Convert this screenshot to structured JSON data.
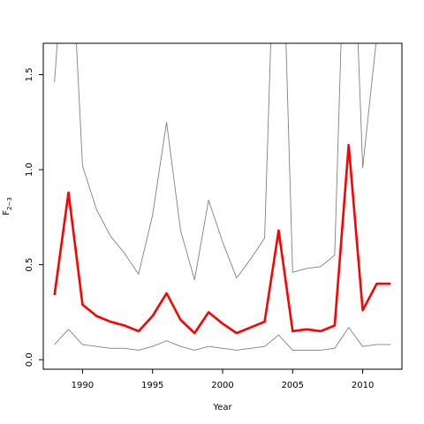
{
  "chart_data": {
    "type": "line",
    "title": "",
    "xlabel": "Year",
    "ylabel": "F",
    "ylabel_sub": "2−3",
    "xlim": [
      1987.2,
      2012.8
    ],
    "ylim": [
      -0.05,
      1.665
    ],
    "x_ticks": [
      1990,
      1995,
      2000,
      2005,
      2010
    ],
    "x_tick_labels": [
      "1990",
      "1995",
      "2000",
      "2005",
      "2010"
    ],
    "y_ticks": [
      0.0,
      0.5,
      1.0,
      1.5
    ],
    "y_tick_labels": [
      "0.0",
      "0.5",
      "1.0",
      "1.5"
    ],
    "grid": false,
    "x": [
      1988,
      1989,
      1990,
      1991,
      1992,
      1993,
      1994,
      1995,
      1996,
      1997,
      1998,
      1999,
      2000,
      2001,
      2002,
      2003,
      2004,
      2005,
      2006,
      2007,
      2008,
      2009,
      2010,
      2011,
      2012
    ],
    "series": [
      {
        "role": "upper-bound",
        "color": "#808080",
        "values": [
          1.46,
          2.5,
          1.02,
          0.79,
          0.65,
          0.56,
          0.45,
          0.76,
          1.25,
          0.68,
          0.42,
          0.84,
          0.62,
          0.43,
          0.53,
          0.64,
          3.0,
          0.46,
          0.48,
          0.49,
          0.55,
          3.0,
          1.01,
          1.7,
          3.0
        ]
      },
      {
        "role": "estimate",
        "color": "#ff0000",
        "values": [
          0.34,
          0.88,
          0.29,
          0.23,
          0.2,
          0.18,
          0.15,
          0.23,
          0.35,
          0.21,
          0.14,
          0.25,
          0.19,
          0.14,
          0.17,
          0.2,
          0.68,
          0.15,
          0.16,
          0.15,
          0.18,
          1.13,
          0.26,
          0.4,
          0.4
        ]
      },
      {
        "role": "lower-bound",
        "color": "#808080",
        "values": [
          0.08,
          0.16,
          0.08,
          0.07,
          0.06,
          0.06,
          0.05,
          0.07,
          0.1,
          0.07,
          0.05,
          0.07,
          0.06,
          0.05,
          0.06,
          0.07,
          0.13,
          0.05,
          0.05,
          0.05,
          0.06,
          0.17,
          0.07,
          0.08,
          0.08
        ]
      }
    ]
  }
}
